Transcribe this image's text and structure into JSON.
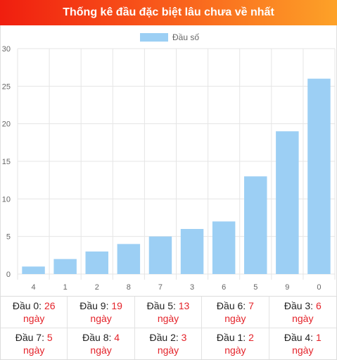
{
  "header": {
    "title": "Thống kê đầu đặc biệt lâu chưa về nhất"
  },
  "colors": {
    "bar": "#9ccff4",
    "grid": "#e5e5e5",
    "red": "#e4232a"
  },
  "chart_data": {
    "type": "bar",
    "categories": [
      "4",
      "1",
      "2",
      "8",
      "7",
      "3",
      "6",
      "5",
      "9",
      "0"
    ],
    "series": [
      {
        "name": "Đầu số",
        "values": [
          1,
          2,
          3,
          4,
          5,
          6,
          7,
          13,
          19,
          26
        ]
      }
    ],
    "ylim": [
      0,
      30
    ],
    "yticks": [
      "0",
      "5",
      "10",
      "15",
      "20",
      "25",
      "30"
    ],
    "grid": true,
    "legend": "top-center"
  },
  "stats": {
    "unit": "ngày",
    "items": [
      {
        "label": "Đầu 0:",
        "value": "26"
      },
      {
        "label": "Đầu 9:",
        "value": "19"
      },
      {
        "label": "Đầu 5:",
        "value": "13"
      },
      {
        "label": "Đầu 6:",
        "value": "7"
      },
      {
        "label": "Đầu 3:",
        "value": "6"
      },
      {
        "label": "Đầu 7:",
        "value": "5"
      },
      {
        "label": "Đầu 8:",
        "value": "4"
      },
      {
        "label": "Đầu 2:",
        "value": "3"
      },
      {
        "label": "Đầu 1:",
        "value": "2"
      },
      {
        "label": "Đầu 4:",
        "value": "1"
      }
    ]
  }
}
